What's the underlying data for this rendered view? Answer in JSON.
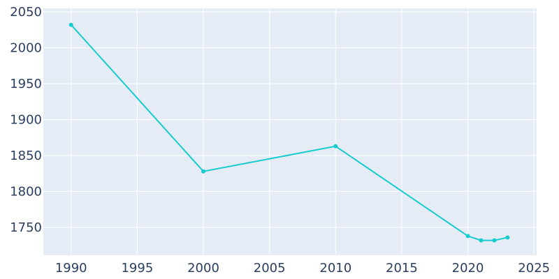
{
  "chart_data": {
    "type": "line",
    "x": [
      1990,
      2000,
      2010,
      2020,
      2021,
      2022,
      2023
    ],
    "series": [
      {
        "color": "#17cccc",
        "values": [
          2032,
          1828,
          1863,
          1738,
          1732,
          1732,
          1736
        ]
      }
    ],
    "xlim": [
      1987.9,
      2025.2
    ],
    "xticks": [
      1990,
      1995,
      2000,
      2005,
      2010,
      2015,
      2020,
      2025
    ],
    "ylim": [
      1711.2,
      2054.9
    ],
    "yticks": [
      1750,
      1800,
      1850,
      1900,
      1950,
      2000,
      2050
    ],
    "grid": true
  }
}
